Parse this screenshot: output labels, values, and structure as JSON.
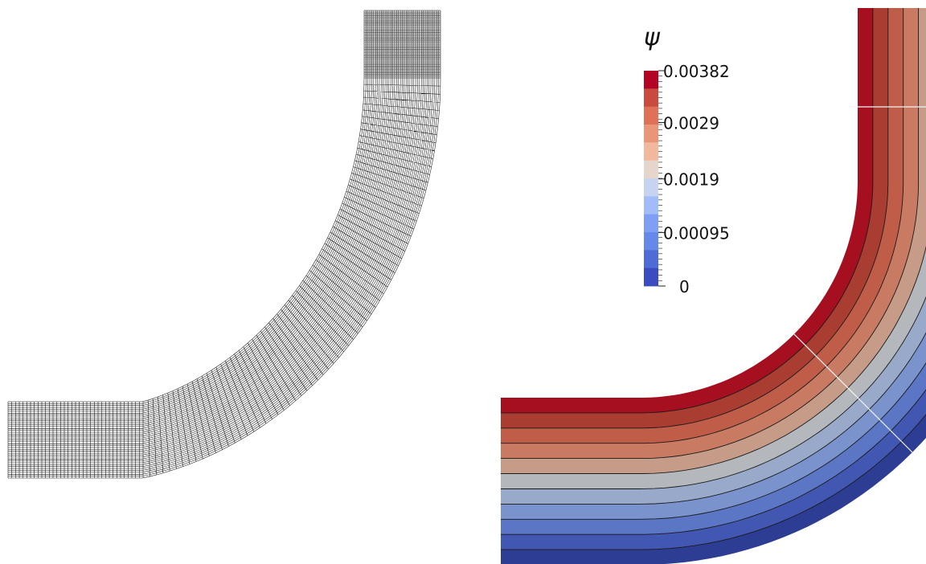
{
  "legend": {
    "title": "ψ",
    "ticks": [
      {
        "label": "0.00382",
        "value": 0.00382
      },
      {
        "label": "0.0029",
        "value": 0.0029
      },
      {
        "label": "0.0019",
        "value": 0.0019
      },
      {
        "label": "0.00095",
        "value": 0.00095
      },
      {
        "label": "0",
        "value": 0
      }
    ],
    "range": [
      0,
      0.00382
    ],
    "band_colors": [
      "#3b4cc0",
      "#4f6bd6",
      "#6688e8",
      "#7f9ff4",
      "#a2bcf7",
      "#c6d4f0",
      "#e6d5cb",
      "#f2b89e",
      "#eb9578",
      "#df7159",
      "#c94a3f",
      "#b40426"
    ]
  },
  "contour": {
    "band_colors": [
      "#2e3d94",
      "#4257b2",
      "#5a76c4",
      "#7a93cc",
      "#98a9c9",
      "#b4b8bd",
      "#c69c89",
      "#c87a63",
      "#bf5d48",
      "#a93d31",
      "#a50f20"
    ],
    "line_color": "#1a1a1a",
    "slice_color": "#f4f4f4"
  },
  "mesh": {
    "line_color": "#111111",
    "background": "#ffffff"
  }
}
